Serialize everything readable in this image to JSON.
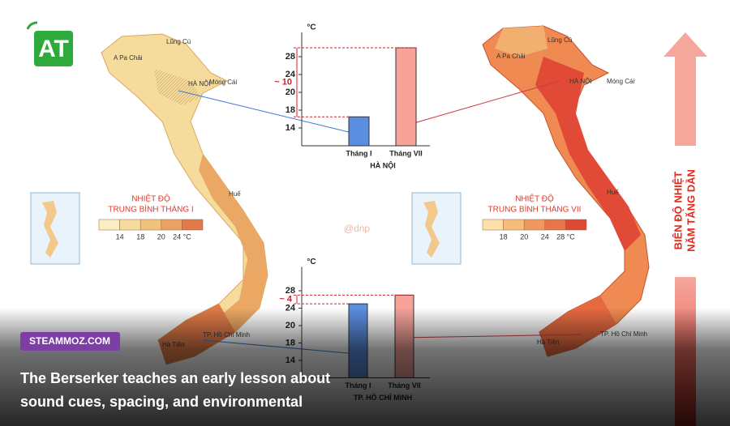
{
  "logo": "AT",
  "watermark": "@dnp",
  "maps": [
    {
      "places": [
        "Lũng Cú",
        "A Pa Chải",
        "HÀ NỘI",
        "Móng Cái",
        "Huế",
        "TP. Hồ Chí Minh",
        "Hà Tiên"
      ],
      "legend": {
        "title": [
          "NHIỆT ĐỘ",
          "TRUNG BÌNH THÁNG I"
        ],
        "labels": [
          "14",
          "18",
          "20",
          "24 °C"
        ]
      }
    },
    {
      "places": [
        "Lũng Cú",
        "A Pa Chải",
        "HÀ NỘI",
        "Móng Cái",
        "Huế",
        "TP. Hồ Chí Minh",
        "Hà Tiên"
      ],
      "legend": {
        "title": [
          "NHIỆT ĐỘ",
          "TRUNG BÌNH THÁNG VII"
        ],
        "labels": [
          "18",
          "20",
          "24",
          "28 °C"
        ]
      }
    }
  ],
  "charts": [
    {
      "type": "bar",
      "unit": "°C",
      "categories": [
        "Tháng I",
        "Tháng VII"
      ],
      "values": [
        16.5,
        29
      ],
      "colors": [
        "#5b8ee0",
        "#f7a39a"
      ],
      "ylim": [
        10,
        30
      ],
      "yticks": [
        14,
        18,
        20,
        24,
        28
      ],
      "city": "HÀ NỘI",
      "annotation": "~ 10"
    },
    {
      "type": "bar",
      "unit": "°C",
      "categories": [
        "Tháng I",
        "Tháng VII"
      ],
      "values": [
        25,
        27
      ],
      "colors": [
        "#5b8ee0",
        "#f7a39a"
      ],
      "ylim": [
        10,
        30
      ],
      "yticks": [
        14,
        18,
        20,
        24,
        28
      ],
      "city": "TP. HỒ CHÍ MINH",
      "annotation": "~ 4"
    }
  ],
  "side_label": [
    "BIÊN ĐỘ NHIỆT",
    "NĂM TĂNG DẦN"
  ],
  "badge": "STEAMMOZ.COM",
  "caption": [
    "The Berserker teaches an early lesson about",
    "sound cues, spacing, and environmental"
  ]
}
